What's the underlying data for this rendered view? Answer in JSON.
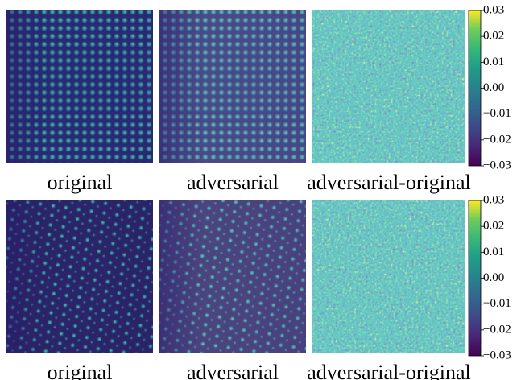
{
  "rows": [
    {
      "captions": [
        "original",
        "adversarial",
        "adversarial-original"
      ],
      "colorbar": {
        "lim": [
          -0.03,
          0.03
        ],
        "ticks": [
          {
            "value": -0.03,
            "label": "−0.03"
          },
          {
            "value": -0.02,
            "label": "−0.02"
          },
          {
            "value": -0.01,
            "label": "−0.01"
          },
          {
            "value": 0,
            "label": "0.00"
          },
          0.01,
          0.02,
          0.03
        ]
      }
    },
    {
      "captions": [
        "original",
        "adversarial",
        "adversarial-original"
      ],
      "colorbar": {
        "lim": [
          -0.03,
          0.03
        ],
        "ticks": [
          {
            "value": -0.03,
            "label": "−0.03"
          },
          {
            "value": -0.02,
            "label": "−0.02"
          },
          {
            "value": -0.01,
            "label": "−0.01"
          },
          {
            "value": 0,
            "label": "0.00"
          },
          0.01,
          0.02,
          0.03
        ]
      }
    }
  ]
}
